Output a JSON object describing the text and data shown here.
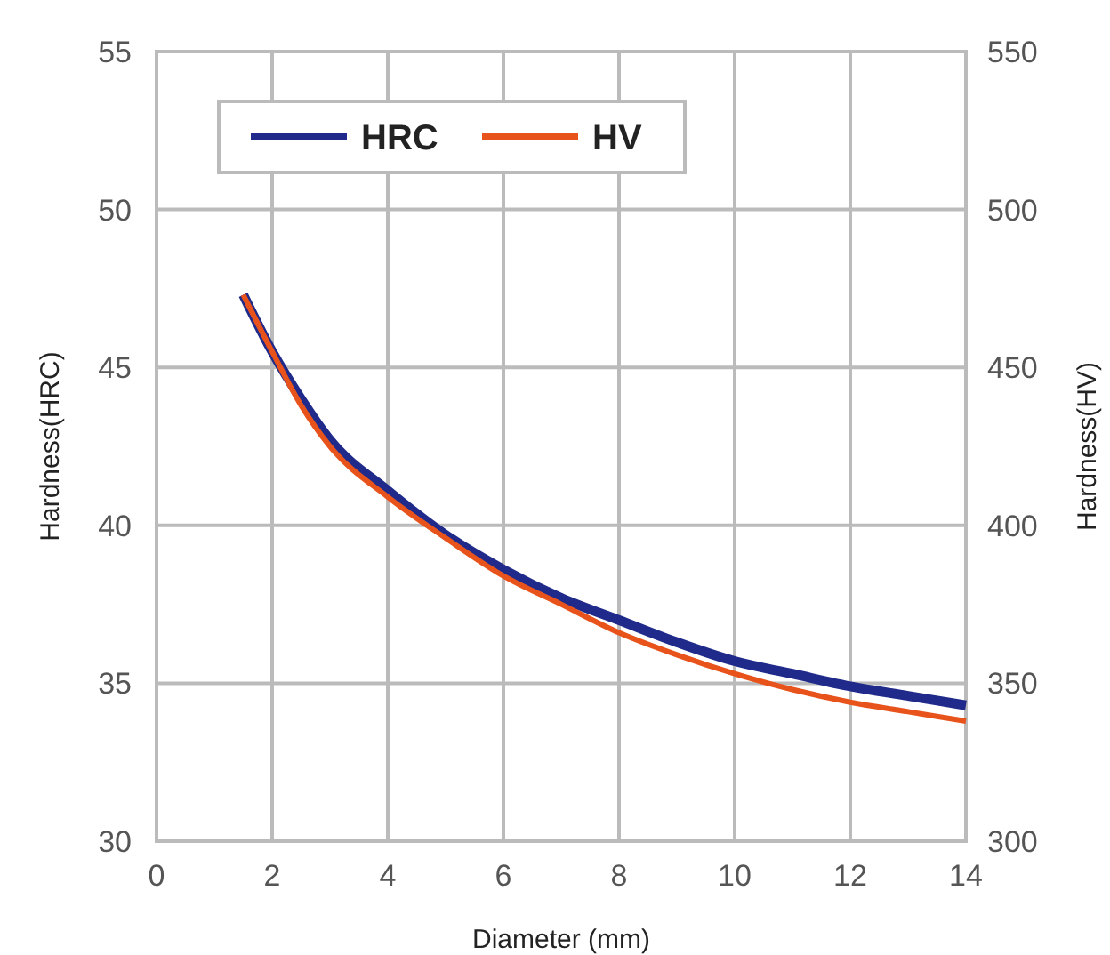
{
  "chart_data": {
    "type": "line",
    "xlabel": "Diameter (mm)",
    "ylabel": "Hardness(HRC)",
    "y2label": "Hardness(HV)",
    "xlim": [
      0,
      14
    ],
    "xticks": [
      0,
      2,
      4,
      6,
      8,
      10,
      12,
      14
    ],
    "ylim": [
      30,
      55
    ],
    "yticks": [
      30,
      35,
      40,
      45,
      50,
      55
    ],
    "y2lim": [
      300,
      550
    ],
    "y2ticks": [
      300,
      350,
      400,
      450,
      500,
      550
    ],
    "grid": true,
    "legend": "top left",
    "marker": "none",
    "line_style": "solid",
    "x": [
      1.5,
      2,
      2.5,
      3,
      4,
      5,
      6,
      7,
      8,
      9,
      10,
      11,
      12,
      13,
      14
    ],
    "series": [
      {
        "name": "HRC",
        "color": "#1f2a8a",
        "values": [
          47.3,
          45.5,
          44.0,
          42.7,
          41.1,
          39.7,
          38.6,
          37.7,
          37.0,
          36.3,
          35.7,
          35.3,
          34.9,
          34.6,
          34.3
        ]
      },
      {
        "name": "HV",
        "color": "#e8531c",
        "axis": "y2",
        "values": [
          473,
          455,
          438,
          425,
          409,
          396,
          384,
          375,
          366,
          359,
          353,
          348,
          344,
          341,
          338
        ]
      }
    ]
  }
}
